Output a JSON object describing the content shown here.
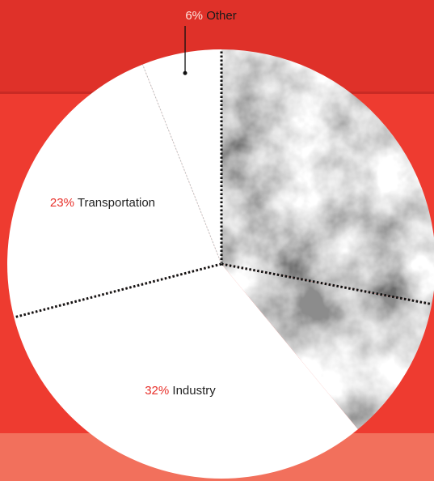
{
  "chart_data": {
    "type": "pie",
    "categories": [
      null,
      null,
      "Industry",
      "Transportation",
      "Other"
    ],
    "values": [
      28,
      11,
      32,
      23,
      6
    ],
    "value_labels": [
      null,
      null,
      "32%",
      "23%",
      "6%"
    ],
    "colors": [
      "#6b6b6b",
      "#8c8c8c",
      "#ffffff",
      "#ffffff",
      "#ffffff"
    ],
    "start_angle": 0,
    "direction": "clockwise"
  }
}
